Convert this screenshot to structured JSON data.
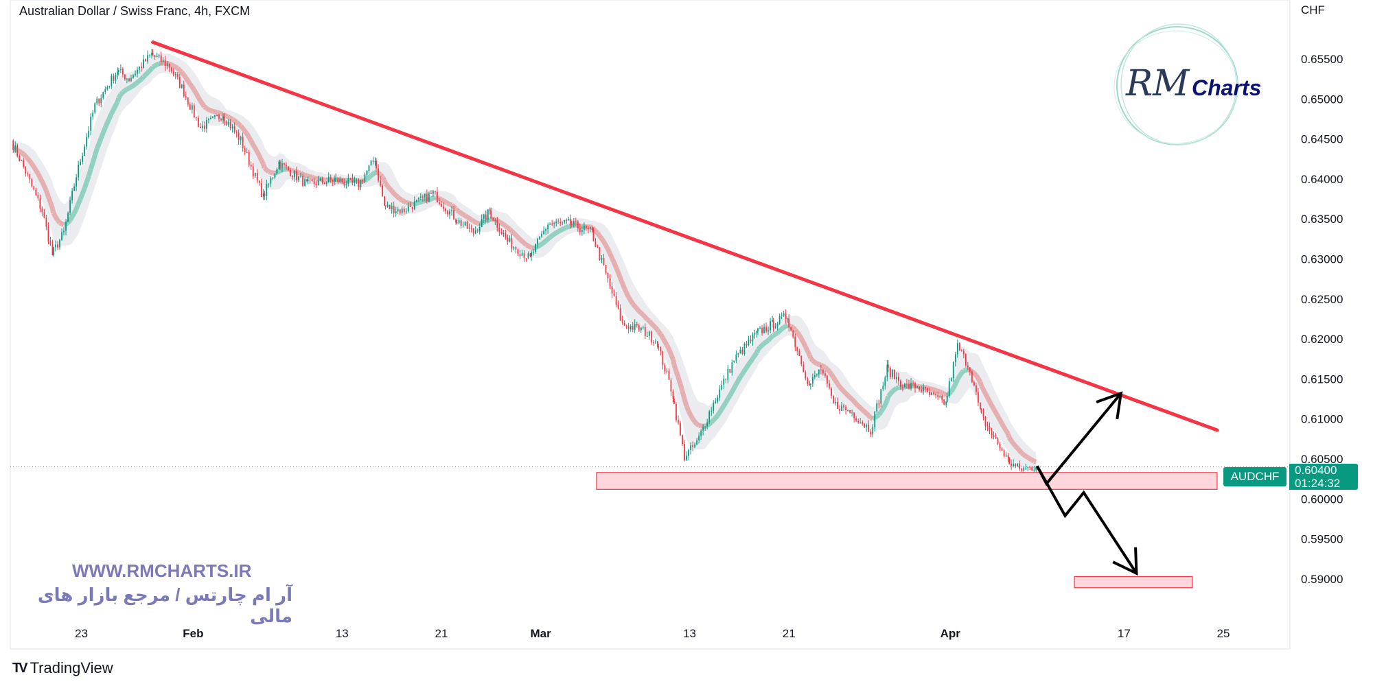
{
  "header": {
    "title": "Australian Dollar / Swiss Franc, 4h, FXCM"
  },
  "watermark": {
    "url": "WWW.RMCHARTS.IR",
    "tagline": "آر ام چارتس / مرجع بازار های مالی",
    "logo_text": "RM Charts"
  },
  "footer": {
    "brand": "TradingView"
  },
  "price_label": {
    "symbol": "AUDCHF",
    "price": "0.60400",
    "countdown": "01:24:32"
  },
  "colors": {
    "up": "#089981",
    "down": "#f23645",
    "trendline": "#f23645",
    "zone_fill": "#ffd6dc",
    "zone_border": "#f23645",
    "arrows": "#000000",
    "accent": "#089981"
  },
  "chart_data": {
    "type": "candlestick",
    "title": "Australian Dollar / Swiss Franc, 4h, FXCM",
    "ylabel": "CHF",
    "ylim": [
      0.5865,
      0.6575
    ],
    "xlim": [
      "2023-01-17T12:00",
      "2023-04-27T00:00"
    ],
    "y_ticks": [
      "0.65500",
      "0.65000",
      "0.64500",
      "0.64000",
      "0.63500",
      "0.63000",
      "0.62500",
      "0.62000",
      "0.61500",
      "0.61000",
      "0.60500",
      "0.60000",
      "0.59500",
      "0.59000"
    ],
    "x_ticks": [
      {
        "date": "2023-01-23",
        "label": "23",
        "bold": false
      },
      {
        "date": "2023-02-01",
        "label": "Feb",
        "bold": true
      },
      {
        "date": "2023-02-13",
        "label": "13",
        "bold": false
      },
      {
        "date": "2023-02-21",
        "label": "21",
        "bold": false
      },
      {
        "date": "2023-03-01",
        "label": "Mar",
        "bold": true
      },
      {
        "date": "2023-03-13",
        "label": "13",
        "bold": false
      },
      {
        "date": "2023-03-21",
        "label": "21",
        "bold": false
      },
      {
        "date": "2023-04-03",
        "label": "Apr",
        "bold": true
      },
      {
        "date": "2023-04-17",
        "label": "17",
        "bold": false
      },
      {
        "date": "2023-04-25",
        "label": "25",
        "bold": false
      }
    ],
    "price_path": [
      [
        "2023-01-17T12:00",
        0.6448
      ],
      [
        "2023-01-18T12:00",
        0.6415
      ],
      [
        "2023-01-20T00:00",
        0.636
      ],
      [
        "2023-01-20T18:00",
        0.6305
      ],
      [
        "2023-01-21T18:00",
        0.6333
      ],
      [
        "2023-01-22T18:00",
        0.6404
      ],
      [
        "2023-01-24T06:00",
        0.6492
      ],
      [
        "2023-01-26T00:00",
        0.6536
      ],
      [
        "2023-01-27T00:00",
        0.6525
      ],
      [
        "2023-01-28T18:00",
        0.6556
      ],
      [
        "2023-01-30T06:00",
        0.6541
      ],
      [
        "2023-01-31T06:00",
        0.6514
      ],
      [
        "2023-02-01T18:00",
        0.6464
      ],
      [
        "2023-02-03T12:00",
        0.6481
      ],
      [
        "2023-02-05T00:00",
        0.6448
      ],
      [
        "2023-02-06T18:00",
        0.6377
      ],
      [
        "2023-02-08T00:00",
        0.6421
      ],
      [
        "2023-02-10T06:00",
        0.6393
      ],
      [
        "2023-02-12T12:00",
        0.6399
      ],
      [
        "2023-02-14T12:00",
        0.6393
      ],
      [
        "2023-02-15T18:00",
        0.6426
      ],
      [
        "2023-02-16T12:00",
        0.6366
      ],
      [
        "2023-02-18T00:00",
        0.636
      ],
      [
        "2023-02-20T12:00",
        0.6382
      ],
      [
        "2023-02-22T06:00",
        0.635
      ],
      [
        "2023-02-23T18:00",
        0.6333
      ],
      [
        "2023-02-25T00:00",
        0.636
      ],
      [
        "2023-02-26T12:00",
        0.6322
      ],
      [
        "2023-02-28T06:00",
        0.63
      ],
      [
        "2023-03-01T18:00",
        0.6344
      ],
      [
        "2023-03-03T12:00",
        0.6344
      ],
      [
        "2023-03-05T06:00",
        0.6333
      ],
      [
        "2023-03-06T06:00",
        0.6289
      ],
      [
        "2023-03-07T18:00",
        0.6218
      ],
      [
        "2023-03-09T06:00",
        0.6212
      ],
      [
        "2023-03-10T12:00",
        0.6196
      ],
      [
        "2023-03-11T18:00",
        0.613
      ],
      [
        "2023-03-12T18:00",
        0.6053
      ],
      [
        "2023-03-13T18:00",
        0.607
      ],
      [
        "2023-03-14T18:00",
        0.6108
      ],
      [
        "2023-03-16T18:00",
        0.6174
      ],
      [
        "2023-03-18T12:00",
        0.6207
      ],
      [
        "2023-03-19T18:00",
        0.6218
      ],
      [
        "2023-03-21T00:00",
        0.6229
      ],
      [
        "2023-03-21T12:00",
        0.6202
      ],
      [
        "2023-03-22T18:00",
        0.6141
      ],
      [
        "2023-03-23T18:00",
        0.6163
      ],
      [
        "2023-03-24T18:00",
        0.6119
      ],
      [
        "2023-03-26T06:00",
        0.6108
      ],
      [
        "2023-03-27T18:00",
        0.6086
      ],
      [
        "2023-03-29T00:00",
        0.6163
      ],
      [
        "2023-03-30T12:00",
        0.6141
      ],
      [
        "2023-03-31T12:00",
        0.6141
      ],
      [
        "2023-04-01T12:00",
        0.613
      ],
      [
        "2023-04-02T18:00",
        0.6119
      ],
      [
        "2023-04-03T18:00",
        0.6191
      ],
      [
        "2023-04-04T18:00",
        0.6163
      ],
      [
        "2023-04-05T12:00",
        0.6108
      ],
      [
        "2023-04-06T12:00",
        0.6081
      ],
      [
        "2023-04-07T18:00",
        0.6048
      ],
      [
        "2023-04-08T18:00",
        0.6037
      ],
      [
        "2023-04-10T00:00",
        0.604
      ]
    ],
    "last_price": 0.604,
    "annotations": {
      "trendline": [
        [
          "2023-01-28T18:00",
          0.6571
        ],
        [
          "2023-04-24T12:00",
          0.6086
        ]
      ],
      "support_zone": {
        "from": "2023-03-05T12:00",
        "to": "2023-04-24T12:00",
        "low": 0.6012,
        "high": 0.6033
      },
      "target_zone": {
        "from": "2023-04-13T00:00",
        "to": "2023-04-22T12:00",
        "low": 0.5889,
        "high": 0.5903
      },
      "bullish_arrow": [
        [
          "2023-04-10T00:00",
          0.6041
        ],
        [
          "2023-04-10T18:00",
          0.6019
        ],
        [
          "2023-04-16T18:00",
          0.6132
        ]
      ],
      "bearish_arrow": [
        [
          "2023-04-10T00:00",
          0.6041
        ],
        [
          "2023-04-12T06:00",
          0.5979
        ],
        [
          "2023-04-13T18:00",
          0.6008
        ],
        [
          "2023-04-18T00:00",
          0.5907
        ]
      ]
    }
  }
}
